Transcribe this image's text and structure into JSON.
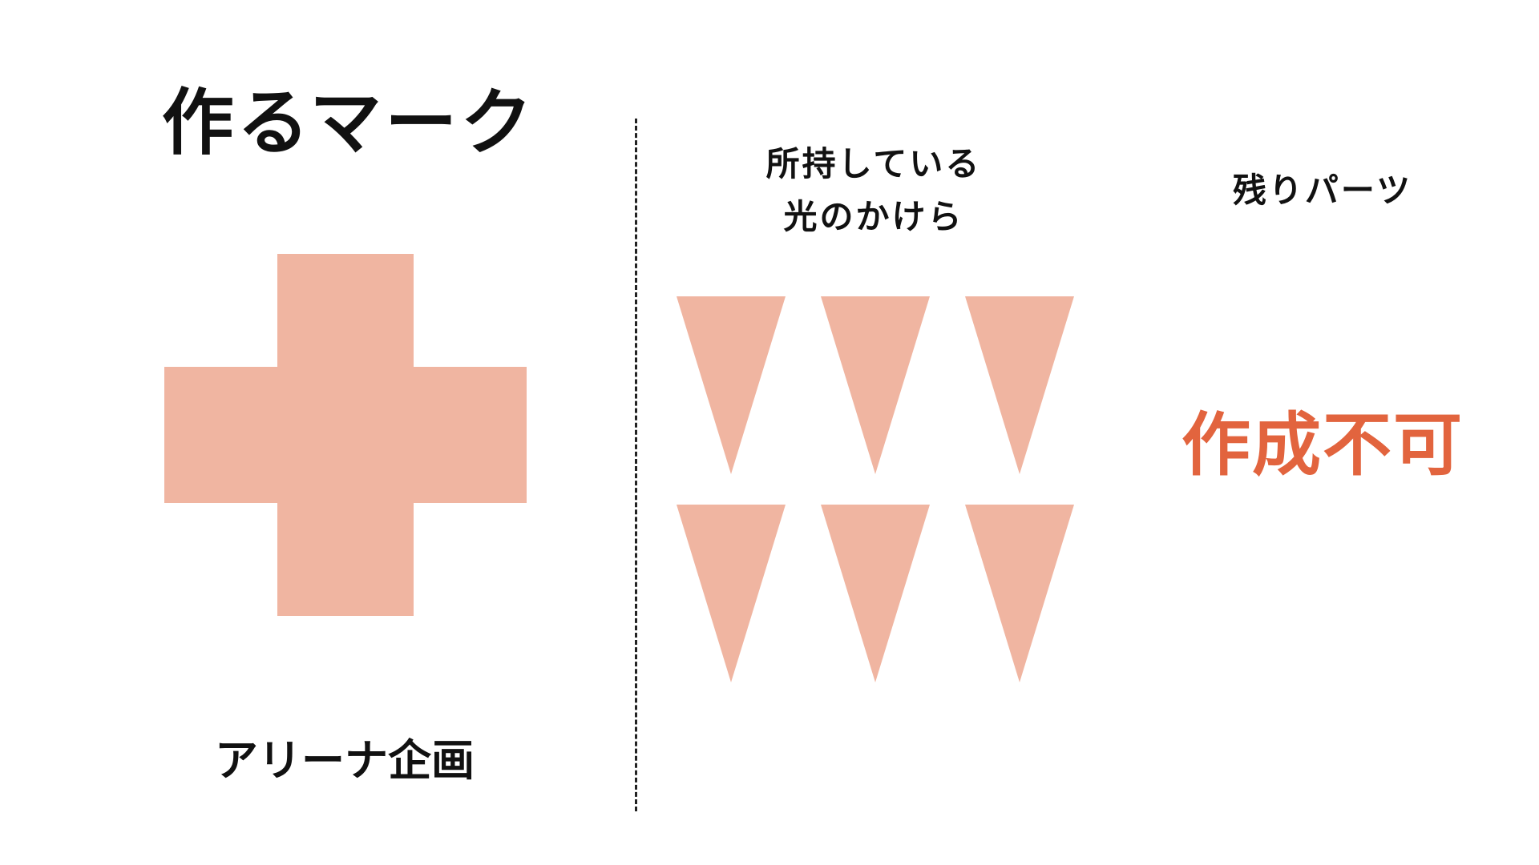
{
  "title": "作るマーク",
  "subtitle": "アリーナ企画",
  "owned_label_line1": "所持している",
  "owned_label_line2": "光のかけら",
  "remaining_label": "残りパーツ",
  "status_text": "作成不可",
  "colors": {
    "shape": "#f0b5a1",
    "status": "#e2643e",
    "text": "#111111"
  },
  "mark_icon": "plus-cross-icon",
  "shard_icon": "inverted-triangle-shard-icon",
  "shard_count": 6
}
